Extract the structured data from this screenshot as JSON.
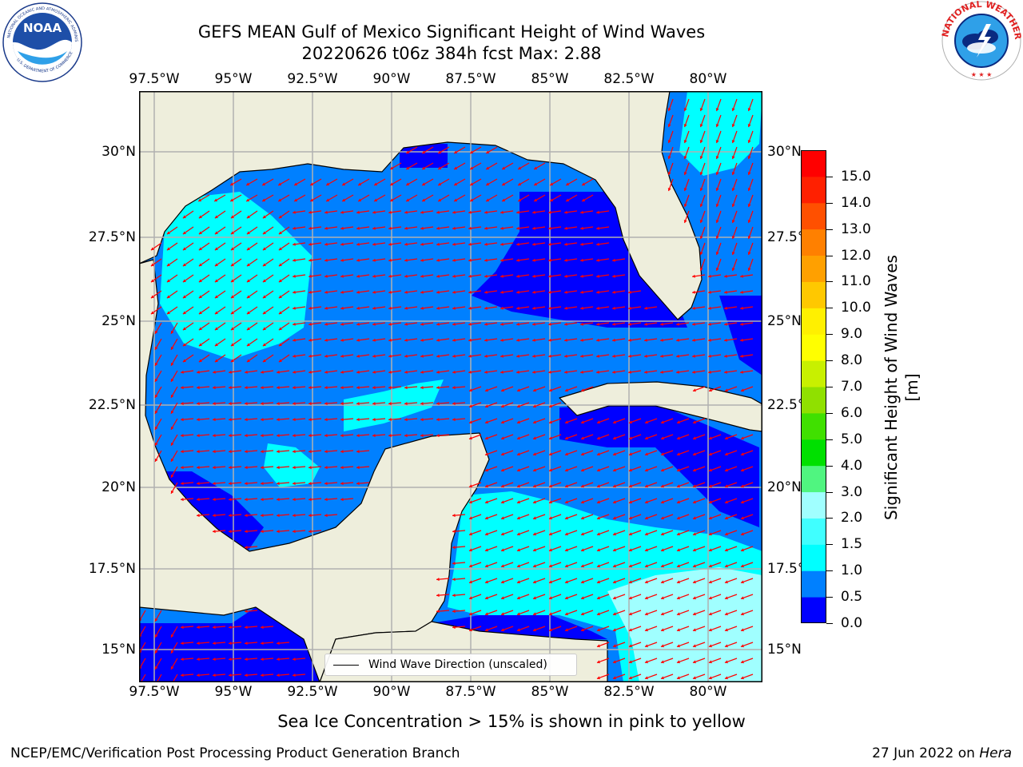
{
  "title_line1": "GEFS MEAN Gulf of Mexico Significant Height of Wind Waves",
  "title_line2": "20220626 t06z 384h fcst   Max: 2.88",
  "logos": {
    "left": {
      "icon": "noaa-logo-icon",
      "text": "NOAA",
      "ring_text": "NATIONAL OCEANIC AND ATMOSPHERIC ADMINISTRATION · U.S. DEPARTMENT OF COMMERCE"
    },
    "right": {
      "icon": "nws-logo-icon",
      "ring_text": "NATIONAL WEATHER SERVICE"
    }
  },
  "longitude_ticks": [
    "97.5°W",
    "95°W",
    "92.5°W",
    "90°W",
    "87.5°W",
    "85°W",
    "82.5°W",
    "80°W"
  ],
  "latitude_ticks": [
    "30°N",
    "27.5°N",
    "25°N",
    "22.5°N",
    "20°N",
    "17.5°N",
    "15°N"
  ],
  "legend": {
    "label": "Wind Wave Direction (unscaled)"
  },
  "colorbar": {
    "label": "Significant Height of Wind Waves [m]",
    "ticks": [
      "0.0",
      "0.5",
      "1.0",
      "1.5",
      "2.0",
      "3.0",
      "4.0",
      "5.0",
      "6.0",
      "7.0",
      "8.0",
      "9.0",
      "10.0",
      "11.0",
      "12.0",
      "13.0",
      "14.0",
      "15.0"
    ],
    "colors": [
      "#0000ff",
      "#0080ff",
      "#00ffff",
      "#40ffff",
      "#a0ffff",
      "#50f580",
      "#00e000",
      "#40e000",
      "#90e000",
      "#c8f000",
      "#ffff00",
      "#fff000",
      "#ffc800",
      "#ffa000",
      "#ff8000",
      "#ff5000",
      "#ff2000",
      "#ff0000"
    ]
  },
  "map_colors": {
    "land": "#eeeedc",
    "level_0": "#0000ff",
    "level_05": "#0080ff",
    "level_10": "#00ffff",
    "level_15": "#40ffff",
    "level_20": "#a0ffff",
    "arrows": "#ff0000",
    "grid": "#b0b0b0"
  },
  "note": "Sea Ice Concentration > 15% is shown in pink to yellow",
  "footer_left": "NCEP/EMC/Verification Post Processing Product Generation Branch",
  "footer_date": "27 Jun 2022 on",
  "footer_machine": "Hera"
}
